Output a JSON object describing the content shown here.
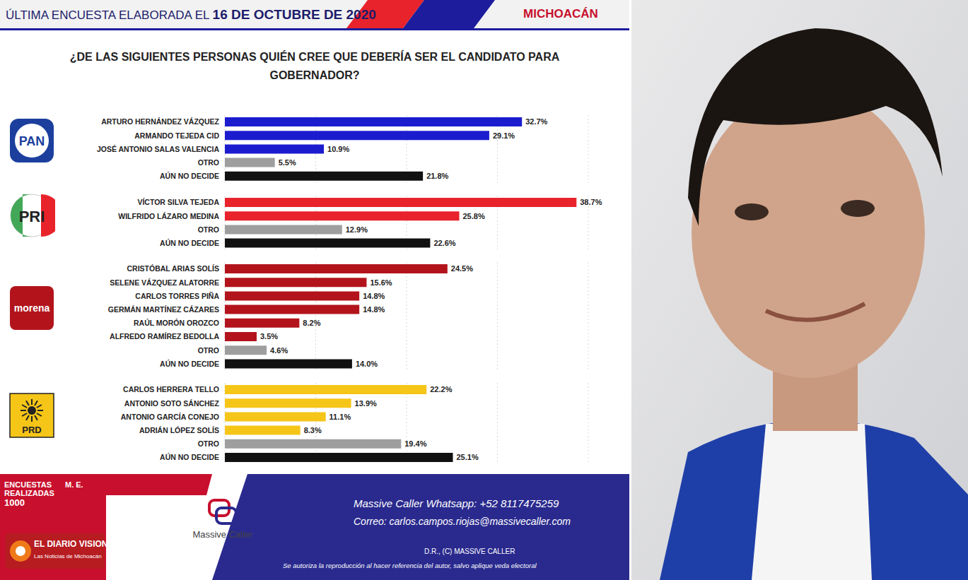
{
  "header": {
    "text": "ÚLTIMA ENCUESTA ELABORADA EL",
    "date": "16 DE OCTUBRE DE 2020",
    "region": "MICHOACÁN"
  },
  "question": [
    "¿DE LAS SIGUIENTES PERSONAS QUIÉN CREE QUE DEBERÍA SER EL CANDIDATO PARA",
    "GOBERNADOR?"
  ],
  "chart_data": [
    {
      "type": "bar",
      "orientation": "horizontal",
      "title": "PAN",
      "categories": [
        "ARTURO HERNÁNDEZ VÁZQUEZ",
        "ARMANDO TEJEDA CID",
        "JOSÉ ANTONIO SALAS VALENCIA",
        "OTRO",
        "AÚN NO DECIDE"
      ],
      "values": [
        32.7,
        29.1,
        10.9,
        5.5,
        21.8
      ],
      "value_labels": [
        "32.7%",
        "29.1%",
        "10.9%",
        "5.5%",
        "21.8%"
      ],
      "colors": [
        "#1c1ccf",
        "#1c1ccf",
        "#1c1ccf",
        "#9e9e9e",
        "#111111"
      ],
      "xlim": [
        0,
        40
      ],
      "xticks": [
        0,
        10,
        20,
        30,
        40
      ],
      "grid": true,
      "data_labels": true,
      "tick_labels": "y"
    },
    {
      "type": "bar",
      "orientation": "horizontal",
      "title": "PRI",
      "categories": [
        "VÍCTOR SILVA TEJEDA",
        "WILFRIDO LÁZARO MEDINA",
        "OTRO",
        "AÚN NO DECIDE"
      ],
      "values": [
        38.7,
        25.8,
        12.9,
        22.6
      ],
      "value_labels": [
        "38.7%",
        "25.8%",
        "12.9%",
        "22.6%"
      ],
      "colors": [
        "#e8232b",
        "#e8232b",
        "#9e9e9e",
        "#111111"
      ],
      "xlim": [
        0,
        40
      ],
      "xticks": [
        0,
        10,
        20,
        30,
        40
      ],
      "grid": true,
      "data_labels": true,
      "tick_labels": "y"
    },
    {
      "type": "bar",
      "orientation": "horizontal",
      "title": "morena",
      "categories": [
        "CRISTÓBAL ARIAS SOLÍS",
        "SELENE VÁZQUEZ ALATORRE",
        "CARLOS TORRES PIÑA",
        "GERMÁN MARTÍNEZ CÁZARES",
        "RAÚL MORÓN OROZCO",
        "ALFREDO RAMÍREZ BEDOLLA",
        "OTRO",
        "AÚN NO DECIDE"
      ],
      "values": [
        24.5,
        15.6,
        14.8,
        14.8,
        8.2,
        3.5,
        4.6,
        14.0
      ],
      "value_labels": [
        "24.5%",
        "15.6%",
        "14.8%",
        "14.8%",
        "8.2%",
        "3.5%",
        "4.6%",
        "14.0%"
      ],
      "colors": [
        "#b3141c",
        "#b3141c",
        "#b3141c",
        "#b3141c",
        "#b3141c",
        "#b3141c",
        "#9e9e9e",
        "#111111"
      ],
      "xlim": [
        0,
        40
      ],
      "xticks": [
        0,
        10,
        20,
        30,
        40
      ],
      "grid": true,
      "data_labels": true,
      "tick_labels": "y"
    },
    {
      "type": "bar",
      "orientation": "horizontal",
      "title": "PRD",
      "categories": [
        "CARLOS HERRERA TELLO",
        "ANTONIO SOTO SÁNCHEZ",
        "ANTONIO GARCÍA CONEJO",
        "ADRIÁN LÓPEZ SOLÍS",
        "OTRO",
        "AÚN NO DECIDE"
      ],
      "values": [
        22.2,
        13.9,
        11.1,
        8.3,
        19.4,
        25.1
      ],
      "value_labels": [
        "22.2%",
        "13.9%",
        "11.1%",
        "8.3%",
        "19.4%",
        "25.1%"
      ],
      "colors": [
        "#f5c518",
        "#f5c518",
        "#f5c518",
        "#f5c518",
        "#9e9e9e",
        "#111111"
      ],
      "xlim": [
        0,
        40
      ],
      "xticks": [
        0,
        10,
        20,
        30,
        40
      ],
      "grid": true,
      "data_labels": true,
      "tick_labels": "y"
    }
  ],
  "footer": {
    "surveys_label": "ENCUESTAS REALIZADAS",
    "surveys": "1000",
    "margin_label": "M. E.",
    "brand": "Massive Caller",
    "whatsapp": "Massive Caller Whatsapp: +52 8117475259",
    "email": "Correo: carlos.campos.riojas@massivecaller.com",
    "copyright": "D.R., (C) MASSIVE CALLER",
    "notice": "Se autoriza la reproducción al hacer referencia del autor, salvo aplique veda electoral"
  },
  "watermark": {
    "name": "EL DIARIO VISION",
    "tagline": "Las Noticias de Michoacán"
  }
}
